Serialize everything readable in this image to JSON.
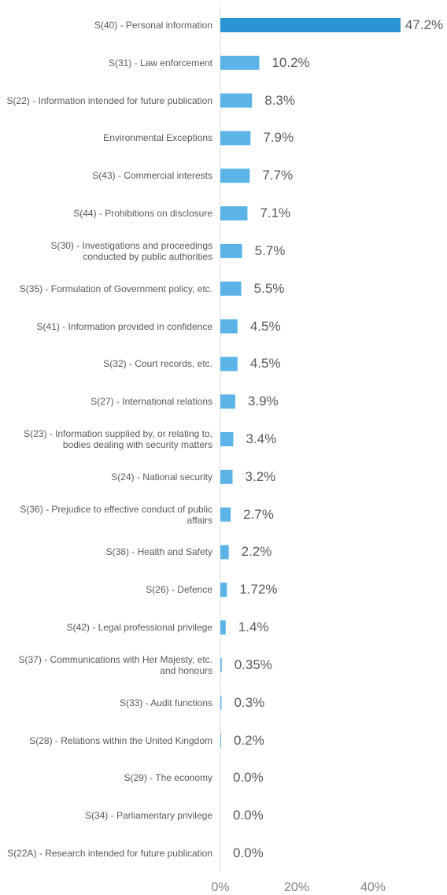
{
  "chart_data": {
    "type": "barh",
    "categories": [
      "S(40) - Personal information",
      "S(31) - Law enforcement",
      "S(22) - Information intended for future publication",
      "Environmental Exceptions",
      "S(43) - Commercial interests",
      "S(44) - Prohibitions on disclosure",
      "S(30) - Investigations and proceedings conducted by public authorities",
      "S(35) - Formulation of Government policy, etc.",
      "S(41) - Information provided in confidence",
      "S(32) - Court records, etc.",
      "S(27) - International relations",
      "S(23) - Information supplied by, or relating to, bodies dealing with security matters",
      "S(24) - National security",
      "S(36) - Prejudice to effective conduct of public affairs",
      "S(38) - Health and Safety",
      "S(26) - Defence",
      "S(42) - Legal professional privilege",
      "S(37) - Communications with Her Majesty, etc. and honours",
      "S(33) - Audit functions",
      "S(28) - Relations within the United Kingdom",
      "S(29) - The economy",
      "S(34) - Parliamentary privilege",
      "S(22A) - Research intended for future publication"
    ],
    "values": [
      47.2,
      10.2,
      8.3,
      7.9,
      7.7,
      7.1,
      5.7,
      5.5,
      4.5,
      4.5,
      3.9,
      3.4,
      3.2,
      2.7,
      2.2,
      1.72,
      1.4,
      0.35,
      0.3,
      0.2,
      0.0,
      0.0,
      0.0
    ],
    "value_labels": [
      "47.2%",
      "10.2%",
      "8.3%",
      "7.9%",
      "7.7%",
      "7.1%",
      "5.7%",
      "5.5%",
      "4.5%",
      "4.5%",
      "3.9%",
      "3.4%",
      "3.2%",
      "2.7%",
      "2.2%",
      "1.72%",
      "1.4%",
      "0.35%",
      "0.3%",
      "0.2%",
      "0.0%",
      "0.0%",
      "0.0%"
    ],
    "colors": [
      "#2a94d5",
      "#5cb3e8",
      "#5cb3e8",
      "#5cb3e8",
      "#5cb3e8",
      "#5cb3e8",
      "#5cb3e8",
      "#5cb3e8",
      "#5cb3e8",
      "#5cb3e8",
      "#5cb3e8",
      "#5cb3e8",
      "#5cb3e8",
      "#5cb3e8",
      "#5cb3e8",
      "#5cb3e8",
      "#5cb3e8",
      "#5cb3e8",
      "#5cb3e8",
      "#5cb3e8",
      "#5cb3e8",
      "#5cb3e8",
      "#5cb3e8"
    ],
    "xlim": [
      0,
      50
    ],
    "xticks": [
      {
        "value": 0,
        "label": "0%"
      },
      {
        "value": 20,
        "label": "20%"
      },
      {
        "value": 40,
        "label": "40%"
      }
    ]
  }
}
